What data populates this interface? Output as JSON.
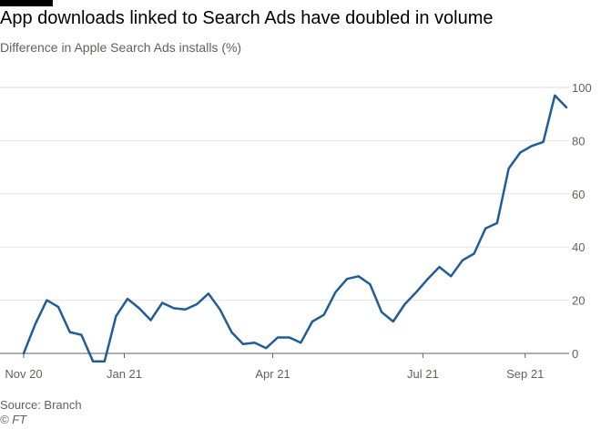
{
  "header": {
    "title": "App downloads linked to Search Ads have doubled in volume",
    "subtitle": "Difference in Apple Search Ads installs (%)"
  },
  "footer": {
    "source": "Source: Branch",
    "credit": "© FT"
  },
  "colors": {
    "line": "#1f5c99",
    "grid": "#e6e2df",
    "axis": "#66605c",
    "text": "#66605c"
  },
  "chart_data": {
    "type": "line",
    "title": "App downloads linked to Search Ads have doubled in volume",
    "subtitle": "Difference in Apple Search Ads installs (%)",
    "xlabel": "",
    "ylabel": "",
    "ylim": [
      0,
      100
    ],
    "yticks": [
      0,
      20,
      40,
      60,
      80,
      100
    ],
    "y_axis_position": "right",
    "grid": true,
    "legend": "none",
    "xticks": [
      {
        "label": "Nov 20",
        "date": "2020-11-01"
      },
      {
        "label": "Jan 21",
        "date": "2021-01-01"
      },
      {
        "label": "Apr 21",
        "date": "2021-04-01"
      },
      {
        "label": "Jul 21",
        "date": "2021-07-01"
      },
      {
        "label": "Sep 21",
        "date": "2021-09-01"
      }
    ],
    "series": [
      {
        "points": [
          {
            "x": "2020-11-01",
            "y": 0
          },
          {
            "x": "2020-11-08",
            "y": 11
          },
          {
            "x": "2020-11-15",
            "y": 20
          },
          {
            "x": "2020-11-22",
            "y": 17.5
          },
          {
            "x": "2020-11-29",
            "y": 8
          },
          {
            "x": "2020-12-06",
            "y": 7
          },
          {
            "x": "2020-12-13",
            "y": -3
          },
          {
            "x": "2020-12-20",
            "y": -3
          },
          {
            "x": "2020-12-27",
            "y": 14
          },
          {
            "x": "2021-01-03",
            "y": 20.5
          },
          {
            "x": "2021-01-10",
            "y": 17
          },
          {
            "x": "2021-01-17",
            "y": 12.5
          },
          {
            "x": "2021-01-24",
            "y": 19
          },
          {
            "x": "2021-01-31",
            "y": 17
          },
          {
            "x": "2021-02-07",
            "y": 16.5
          },
          {
            "x": "2021-02-14",
            "y": 18.5
          },
          {
            "x": "2021-02-21",
            "y": 22.5
          },
          {
            "x": "2021-02-28",
            "y": 16.5
          },
          {
            "x": "2021-03-07",
            "y": 8
          },
          {
            "x": "2021-03-14",
            "y": 3.5
          },
          {
            "x": "2021-03-21",
            "y": 4
          },
          {
            "x": "2021-03-28",
            "y": 2
          },
          {
            "x": "2021-04-04",
            "y": 6
          },
          {
            "x": "2021-04-11",
            "y": 6
          },
          {
            "x": "2021-04-18",
            "y": 4
          },
          {
            "x": "2021-04-25",
            "y": 12
          },
          {
            "x": "2021-05-02",
            "y": 14.5
          },
          {
            "x": "2021-05-09",
            "y": 23
          },
          {
            "x": "2021-05-16",
            "y": 28
          },
          {
            "x": "2021-05-23",
            "y": 29
          },
          {
            "x": "2021-05-30",
            "y": 26
          },
          {
            "x": "2021-06-06",
            "y": 15.5
          },
          {
            "x": "2021-06-13",
            "y": 12
          },
          {
            "x": "2021-06-20",
            "y": 18.5
          },
          {
            "x": "2021-06-27",
            "y": 23
          },
          {
            "x": "2021-07-04",
            "y": 28
          },
          {
            "x": "2021-07-11",
            "y": 32.5
          },
          {
            "x": "2021-07-18",
            "y": 29
          },
          {
            "x": "2021-07-25",
            "y": 35
          },
          {
            "x": "2021-08-01",
            "y": 37.5
          },
          {
            "x": "2021-08-08",
            "y": 47
          },
          {
            "x": "2021-08-15",
            "y": 49
          },
          {
            "x": "2021-08-22",
            "y": 69.5
          },
          {
            "x": "2021-08-29",
            "y": 75.5
          },
          {
            "x": "2021-09-05",
            "y": 78
          },
          {
            "x": "2021-09-12",
            "y": 79.5
          },
          {
            "x": "2021-09-19",
            "y": 97
          },
          {
            "x": "2021-09-26",
            "y": 92.5
          }
        ]
      }
    ]
  }
}
